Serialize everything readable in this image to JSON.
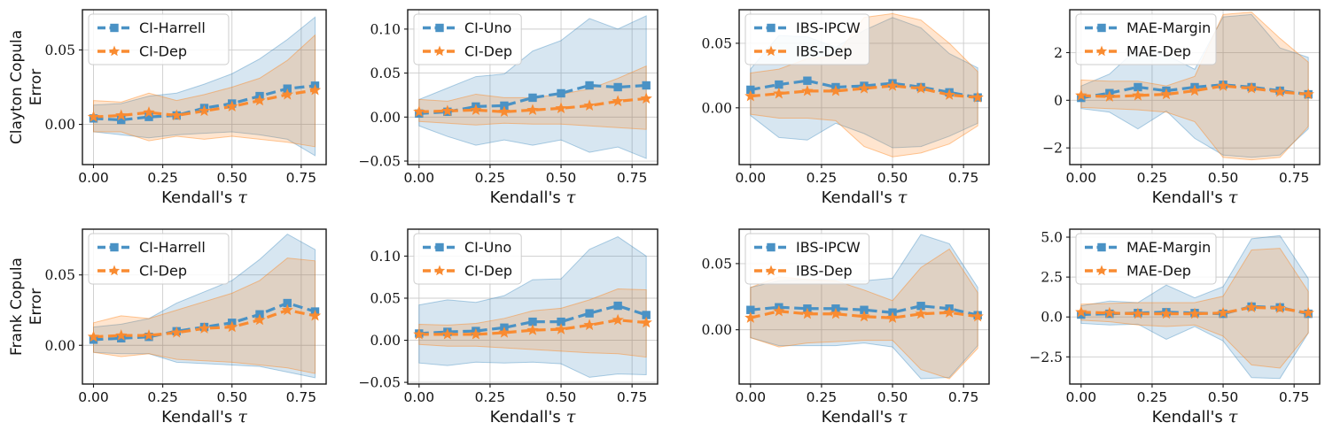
{
  "figure": {
    "title": "",
    "row_labels": [
      "Clayton Copula Error",
      "Frank Copula Error"
    ],
    "background": "#ffffff"
  },
  "style": {
    "blue": "#4a92c5",
    "orange": "#f98b31",
    "blue_band_fill": "rgba(31,119,180,0.18)",
    "orange_band_fill": "rgba(255,127,14,0.20)",
    "blue_band_edge": "rgba(31,119,180,0.35)",
    "orange_band_edge": "rgba(255,127,14,0.42)",
    "grid_color": "#cccccc",
    "spine_color": "#1a1a1a",
    "text_color": "#141414"
  },
  "chart_data": [
    {
      "type": "line",
      "id": "clayton-ci-harrell",
      "ylabel_lines": [
        "Clayton Copula",
        "Error"
      ],
      "xlabel": "Kendall's τ",
      "x": [
        0.0,
        0.1,
        0.2,
        0.3,
        0.4,
        0.5,
        0.6,
        0.7,
        0.8
      ],
      "xlim": [
        -0.04,
        0.84
      ],
      "ylim": [
        -0.027,
        0.077
      ],
      "xticks": {
        "values": [
          0,
          0.25,
          0.5,
          0.75
        ],
        "labels": [
          "0.00",
          "0.25",
          "0.50",
          "0.75"
        ]
      },
      "yticks": {
        "values": [
          0,
          0.05
        ],
        "labels": [
          "0.00",
          "0.05"
        ]
      },
      "grid": true,
      "legend_position": "upper left",
      "series": [
        {
          "name": "CI-Harrell",
          "color": "blue",
          "marker": "square",
          "mean": [
            0.004,
            0.003,
            0.005,
            0.006,
            0.011,
            0.014,
            0.019,
            0.024,
            0.026
          ],
          "band_low": [
            -0.005,
            -0.007,
            -0.009,
            -0.007,
            -0.006,
            -0.005,
            -0.007,
            -0.01,
            -0.021
          ],
          "band_high": [
            0.013,
            0.014,
            0.019,
            0.021,
            0.027,
            0.034,
            0.044,
            0.057,
            0.072
          ]
        },
        {
          "name": "CI-Dep",
          "color": "orange",
          "marker": "star",
          "mean": [
            0.005,
            0.006,
            0.008,
            0.006,
            0.009,
            0.012,
            0.016,
            0.02,
            0.023
          ],
          "band_low": [
            -0.005,
            -0.005,
            -0.011,
            -0.008,
            -0.01,
            -0.008,
            -0.01,
            -0.012,
            -0.015
          ],
          "band_high": [
            0.016,
            0.015,
            0.021,
            0.016,
            0.02,
            0.025,
            0.031,
            0.043,
            0.06
          ]
        }
      ]
    },
    {
      "type": "line",
      "id": "clayton-ci-uno",
      "ylabel_lines": null,
      "xlabel": "Kendall's τ",
      "x": [
        0.0,
        0.1,
        0.2,
        0.3,
        0.4,
        0.5,
        0.6,
        0.7,
        0.8
      ],
      "xlim": [
        -0.04,
        0.84
      ],
      "ylim": [
        -0.054,
        0.122
      ],
      "xticks": {
        "values": [
          0,
          0.25,
          0.5,
          0.75
        ],
        "labels": [
          "0.00",
          "0.25",
          "0.50",
          "0.75"
        ]
      },
      "yticks": {
        "values": [
          -0.05,
          0,
          0.05,
          0.1
        ],
        "labels": [
          "−0.05",
          "0.00",
          "0.05",
          "0.10"
        ]
      },
      "grid": true,
      "legend_position": "upper left",
      "series": [
        {
          "name": "CI-Uno",
          "color": "blue",
          "marker": "square",
          "mean": [
            0.004,
            0.006,
            0.012,
            0.013,
            0.022,
            0.027,
            0.036,
            0.034,
            0.036
          ],
          "band_low": [
            -0.01,
            -0.022,
            -0.032,
            -0.026,
            -0.032,
            -0.026,
            -0.04,
            -0.034,
            -0.047
          ],
          "band_high": [
            0.02,
            0.033,
            0.046,
            0.049,
            0.075,
            0.087,
            0.112,
            0.1,
            0.115
          ]
        },
        {
          "name": "CI-Dep",
          "color": "orange",
          "marker": "star",
          "mean": [
            0.006,
            0.007,
            0.008,
            0.006,
            0.008,
            0.01,
            0.013,
            0.018,
            0.021
          ],
          "band_low": [
            -0.005,
            -0.007,
            -0.009,
            -0.007,
            -0.008,
            -0.008,
            -0.01,
            -0.012,
            -0.014
          ],
          "band_high": [
            0.02,
            0.018,
            0.026,
            0.022,
            0.022,
            0.026,
            0.032,
            0.044,
            0.058
          ]
        }
      ]
    },
    {
      "type": "line",
      "id": "clayton-ibs",
      "ylabel_lines": null,
      "xlabel": "Kendall's τ",
      "x": [
        0.0,
        0.1,
        0.2,
        0.3,
        0.4,
        0.5,
        0.6,
        0.7,
        0.8
      ],
      "xlim": [
        -0.04,
        0.84
      ],
      "ylim": [
        -0.044,
        0.076
      ],
      "xticks": {
        "values": [
          0,
          0.25,
          0.5,
          0.75
        ],
        "labels": [
          "0.00",
          "0.25",
          "0.50",
          "0.75"
        ]
      },
      "yticks": {
        "values": [
          0,
          0.05
        ],
        "labels": [
          "0.00",
          "0.05"
        ]
      },
      "grid": true,
      "legend_position": "upper left",
      "series": [
        {
          "name": "IBS-IPCW",
          "color": "blue",
          "marker": "square",
          "mean": [
            0.014,
            0.018,
            0.021,
            0.016,
            0.017,
            0.019,
            0.016,
            0.012,
            0.008
          ],
          "band_low": [
            -0.006,
            -0.023,
            -0.025,
            -0.012,
            -0.02,
            -0.031,
            -0.03,
            -0.022,
            -0.012
          ],
          "band_high": [
            0.03,
            0.056,
            0.055,
            0.047,
            0.06,
            0.07,
            0.062,
            0.042,
            0.031
          ]
        },
        {
          "name": "IBS-Dep",
          "color": "orange",
          "marker": "star",
          "mean": [
            0.009,
            0.011,
            0.013,
            0.013,
            0.015,
            0.017,
            0.015,
            0.01,
            0.008
          ],
          "band_low": [
            -0.005,
            -0.008,
            -0.008,
            -0.01,
            -0.03,
            -0.038,
            -0.035,
            -0.028,
            -0.014
          ],
          "band_high": [
            0.027,
            0.03,
            0.038,
            0.04,
            0.07,
            0.073,
            0.068,
            0.05,
            0.028
          ]
        }
      ]
    },
    {
      "type": "line",
      "id": "clayton-mae",
      "ylabel_lines": null,
      "xlabel": "Kendall's τ",
      "x": [
        0.0,
        0.1,
        0.2,
        0.3,
        0.4,
        0.5,
        0.6,
        0.7,
        0.8
      ],
      "xlim": [
        -0.04,
        0.84
      ],
      "ylim": [
        -2.7,
        3.8
      ],
      "xticks": {
        "values": [
          0,
          0.25,
          0.5,
          0.75
        ],
        "labels": [
          "0.00",
          "0.25",
          "0.50",
          "0.75"
        ]
      },
      "yticks": {
        "values": [
          -2,
          0,
          2
        ],
        "labels": [
          "−2",
          "0",
          "2"
        ]
      },
      "grid": true,
      "legend_position": "upper left",
      "series": [
        {
          "name": "MAE-Margin",
          "color": "blue",
          "marker": "square",
          "mean": [
            0.1,
            0.3,
            0.55,
            0.4,
            0.55,
            0.65,
            0.55,
            0.4,
            0.25
          ],
          "band_low": [
            -0.35,
            -0.5,
            -1.2,
            -0.45,
            -1.6,
            -2.3,
            -2.4,
            -2.3,
            -1.2
          ],
          "band_high": [
            0.6,
            1.1,
            2.2,
            1.9,
            1.3,
            3.5,
            3.6,
            2.2,
            1.8
          ]
        },
        {
          "name": "MAE-Dep",
          "color": "orange",
          "marker": "star",
          "mean": [
            0.2,
            0.15,
            0.2,
            0.25,
            0.4,
            0.6,
            0.5,
            0.35,
            0.25
          ],
          "band_low": [
            -0.3,
            -0.35,
            -0.4,
            -0.5,
            -0.9,
            -2.4,
            -2.5,
            -2.4,
            -1.1
          ],
          "band_high": [
            0.85,
            0.8,
            0.8,
            0.6,
            1.0,
            3.6,
            3.7,
            2.6,
            1.6
          ]
        }
      ]
    },
    {
      "type": "line",
      "id": "frank-ci-harrell",
      "ylabel_lines": [
        "Frank Copula",
        "Error"
      ],
      "xlabel": "Kendall's τ",
      "x": [
        0.0,
        0.1,
        0.2,
        0.3,
        0.4,
        0.5,
        0.6,
        0.7,
        0.8
      ],
      "xlim": [
        -0.04,
        0.84
      ],
      "ylim": [
        -0.0275,
        0.0825
      ],
      "xticks": {
        "values": [
          0,
          0.25,
          0.5,
          0.75
        ],
        "labels": [
          "0.00",
          "0.25",
          "0.50",
          "0.75"
        ]
      },
      "yticks": {
        "values": [
          0,
          0.05
        ],
        "labels": [
          "0.00",
          "0.05"
        ]
      },
      "grid": true,
      "legend_position": "upper left",
      "series": [
        {
          "name": "CI-Harrell",
          "color": "blue",
          "marker": "square",
          "mean": [
            0.004,
            0.005,
            0.006,
            0.01,
            0.013,
            0.016,
            0.022,
            0.03,
            0.024
          ],
          "band_low": [
            -0.005,
            -0.006,
            -0.006,
            -0.012,
            -0.013,
            -0.014,
            -0.015,
            -0.019,
            -0.023
          ],
          "band_high": [
            0.013,
            0.015,
            0.019,
            0.03,
            0.038,
            0.046,
            0.061,
            0.079,
            0.068
          ]
        },
        {
          "name": "CI-Dep",
          "color": "orange",
          "marker": "star",
          "mean": [
            0.006,
            0.007,
            0.007,
            0.009,
            0.012,
            0.013,
            0.018,
            0.025,
            0.021
          ],
          "band_low": [
            -0.005,
            -0.008,
            -0.006,
            -0.01,
            -0.011,
            -0.012,
            -0.014,
            -0.016,
            -0.02
          ],
          "band_high": [
            0.016,
            0.021,
            0.019,
            0.025,
            0.031,
            0.037,
            0.046,
            0.062,
            0.06
          ]
        }
      ]
    },
    {
      "type": "line",
      "id": "frank-ci-uno",
      "ylabel_lines": null,
      "xlabel": "Kendall's τ",
      "x": [
        0.0,
        0.1,
        0.2,
        0.3,
        0.4,
        0.5,
        0.6,
        0.7,
        0.8
      ],
      "xlim": [
        -0.04,
        0.84
      ],
      "ylim": [
        -0.052,
        0.132
      ],
      "xticks": {
        "values": [
          0,
          0.25,
          0.5,
          0.75
        ],
        "labels": [
          "0.00",
          "0.25",
          "0.50",
          "0.75"
        ]
      },
      "yticks": {
        "values": [
          -0.05,
          0,
          0.05,
          0.1
        ],
        "labels": [
          "−0.05",
          "0.00",
          "0.05",
          "0.10"
        ]
      },
      "grid": true,
      "legend_position": "upper left",
      "series": [
        {
          "name": "CI-Uno",
          "color": "blue",
          "marker": "square",
          "mean": [
            0.008,
            0.01,
            0.011,
            0.015,
            0.022,
            0.022,
            0.032,
            0.041,
            0.03
          ],
          "band_low": [
            -0.027,
            -0.03,
            -0.026,
            -0.027,
            -0.026,
            -0.028,
            -0.044,
            -0.04,
            -0.041
          ],
          "band_high": [
            0.042,
            0.048,
            0.045,
            0.053,
            0.072,
            0.073,
            0.108,
            0.123,
            0.1
          ]
        },
        {
          "name": "CI-Dep",
          "color": "orange",
          "marker": "star",
          "mean": [
            0.007,
            0.007,
            0.007,
            0.009,
            0.012,
            0.013,
            0.018,
            0.024,
            0.021
          ],
          "band_low": [
            -0.005,
            -0.007,
            -0.007,
            -0.009,
            -0.011,
            -0.013,
            -0.015,
            -0.016,
            -0.02
          ],
          "band_high": [
            0.019,
            0.018,
            0.02,
            0.026,
            0.035,
            0.038,
            0.048,
            0.061,
            0.06
          ]
        }
      ]
    },
    {
      "type": "line",
      "id": "frank-ibs",
      "ylabel_lines": null,
      "xlabel": "Kendall's τ",
      "x": [
        0.0,
        0.1,
        0.2,
        0.3,
        0.4,
        0.5,
        0.6,
        0.7,
        0.8
      ],
      "xlim": [
        -0.04,
        0.84
      ],
      "ylim": [
        -0.041,
        0.076
      ],
      "xticks": {
        "values": [
          0,
          0.25,
          0.5,
          0.75
        ],
        "labels": [
          "0.00",
          "0.25",
          "0.50",
          "0.75"
        ]
      },
      "yticks": {
        "values": [
          0,
          0.05
        ],
        "labels": [
          "0.00",
          "0.05"
        ]
      },
      "grid": true,
      "legend_position": "upper left",
      "series": [
        {
          "name": "IBS-IPCW",
          "color": "blue",
          "marker": "square",
          "mean": [
            0.015,
            0.017,
            0.016,
            0.016,
            0.015,
            0.013,
            0.018,
            0.016,
            0.011
          ],
          "band_low": [
            -0.006,
            -0.012,
            -0.012,
            -0.012,
            -0.01,
            -0.013,
            -0.037,
            -0.036,
            -0.012
          ],
          "band_high": [
            0.032,
            0.037,
            0.038,
            0.038,
            0.037,
            0.039,
            0.072,
            0.065,
            0.032
          ]
        },
        {
          "name": "IBS-Dep",
          "color": "orange",
          "marker": "star",
          "mean": [
            0.009,
            0.014,
            0.012,
            0.012,
            0.01,
            0.009,
            0.012,
            0.013,
            0.01
          ],
          "band_low": [
            -0.006,
            -0.013,
            -0.01,
            -0.009,
            -0.008,
            -0.008,
            -0.03,
            -0.037,
            -0.014
          ],
          "band_high": [
            0.032,
            0.04,
            0.038,
            0.037,
            0.03,
            0.022,
            0.047,
            0.061,
            0.028
          ]
        }
      ]
    },
    {
      "type": "line",
      "id": "frank-mae",
      "ylabel_lines": null,
      "xlabel": "Kendall's τ",
      "x": [
        0.0,
        0.1,
        0.2,
        0.3,
        0.4,
        0.5,
        0.6,
        0.7,
        0.8
      ],
      "xlim": [
        -0.04,
        0.84
      ],
      "ylim": [
        -4.2,
        5.5
      ],
      "xticks": {
        "values": [
          0,
          0.25,
          0.5,
          0.75
        ],
        "labels": [
          "0.00",
          "0.25",
          "0.50",
          "0.75"
        ]
      },
      "yticks": {
        "values": [
          -2.5,
          0,
          2.5,
          5
        ],
        "labels": [
          "−2.5",
          "0.0",
          "2.5",
          "5.0"
        ]
      },
      "grid": true,
      "legend_position": "upper left",
      "series": [
        {
          "name": "MAE-Margin",
          "color": "blue",
          "marker": "square",
          "mean": [
            0.15,
            0.2,
            0.25,
            0.3,
            0.25,
            0.2,
            0.65,
            0.6,
            0.2
          ],
          "band_low": [
            -0.4,
            -0.5,
            -0.45,
            -1.4,
            -0.6,
            -1.5,
            -3.8,
            -3.85,
            -1.0
          ],
          "band_high": [
            0.7,
            1.0,
            0.9,
            2.0,
            1.2,
            1.9,
            4.9,
            5.1,
            2.4
          ]
        },
        {
          "name": "MAE-Dep",
          "color": "orange",
          "marker": "star",
          "mean": [
            0.3,
            0.25,
            0.2,
            0.2,
            0.2,
            0.25,
            0.6,
            0.55,
            0.25
          ],
          "band_low": [
            -0.2,
            -0.3,
            -0.5,
            -0.6,
            -0.5,
            -1.2,
            -3.0,
            -3.2,
            -1.0
          ],
          "band_high": [
            0.8,
            0.85,
            0.9,
            0.9,
            0.9,
            1.3,
            4.2,
            4.3,
            1.6
          ]
        }
      ]
    }
  ]
}
